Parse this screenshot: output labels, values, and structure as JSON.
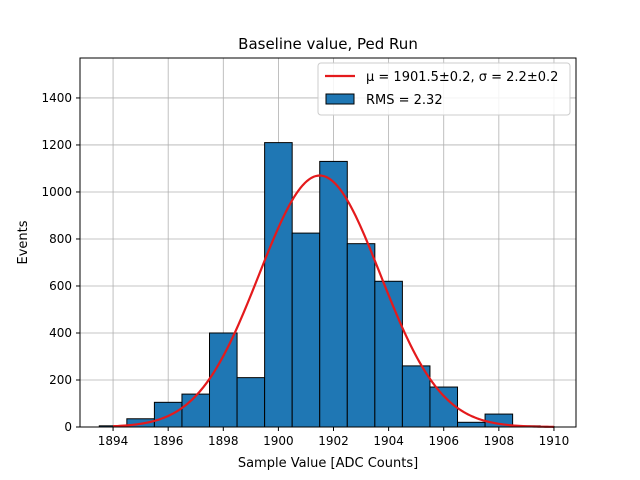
{
  "chart_data": {
    "type": "bar",
    "title": "Baseline value, Ped Run",
    "xlabel": "Sample Value [ADC Counts]",
    "ylabel": "Events",
    "xlim": [
      1892.8,
      1910.8
    ],
    "ylim": [
      0,
      1570
    ],
    "xticks": [
      1894,
      1896,
      1898,
      1900,
      1902,
      1904,
      1906,
      1908,
      1910
    ],
    "yticks": [
      0,
      200,
      400,
      600,
      800,
      1000,
      1200,
      1400
    ],
    "grid": true,
    "legend_position": "top-right",
    "histogram": {
      "name": "RMS = 2.32",
      "bin_edges": [
        1893.5,
        1894.5,
        1895.5,
        1896.5,
        1897.5,
        1898.5,
        1899.5,
        1900.5,
        1901.5,
        1902.5,
        1903.5,
        1904.5,
        1905.5,
        1906.5,
        1907.5,
        1908.5,
        1909.5,
        1910.0
      ],
      "counts": [
        5,
        35,
        105,
        140,
        400,
        210,
        1210,
        825,
        1130,
        780,
        620,
        260,
        170,
        20,
        55,
        5,
        2
      ],
      "color": "#1f77b4",
      "edgecolor": "#000000"
    },
    "fit": {
      "label": "μ = 1901.5±0.2, σ = 2.2±0.2",
      "mu": 1901.5,
      "sigma": 2.2,
      "amplitude": 1070,
      "x_range": [
        1894,
        1910
      ],
      "color": "#e41a1c"
    }
  }
}
